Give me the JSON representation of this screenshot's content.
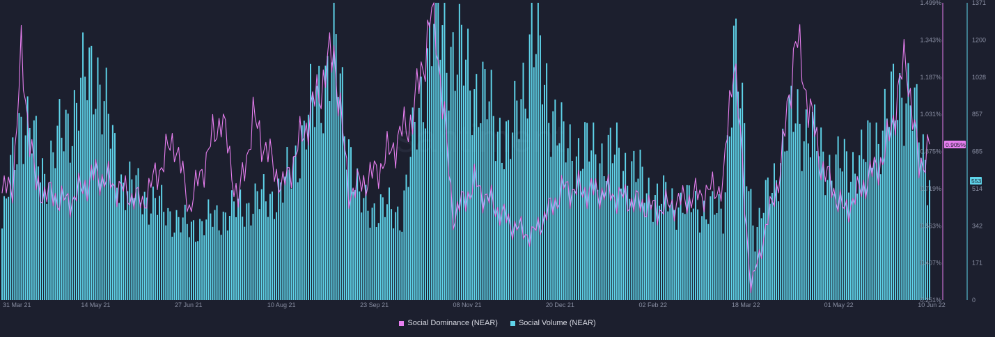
{
  "chart_data": {
    "type": "bar",
    "watermark": "santiment",
    "series": [
      {
        "name": "Social Dominance (NEAR)",
        "kind": "line",
        "axis": "right-inner",
        "unit": "%",
        "color": "#e87ff0",
        "anchors": [
          {
            "x": "2021-03-31",
            "y": 0.7
          },
          {
            "x": "2021-04-05",
            "y": 0.74
          },
          {
            "x": "2021-04-09",
            "y": 1.26
          },
          {
            "x": "2021-04-16",
            "y": 0.72
          },
          {
            "x": "2021-05-01",
            "y": 0.66
          },
          {
            "x": "2021-05-14",
            "y": 0.78
          },
          {
            "x": "2021-06-05",
            "y": 0.66
          },
          {
            "x": "2021-06-20",
            "y": 0.93
          },
          {
            "x": "2021-06-27",
            "y": 0.64
          },
          {
            "x": "2021-07-12",
            "y": 1.03
          },
          {
            "x": "2021-07-20",
            "y": 0.66
          },
          {
            "x": "2021-07-27",
            "y": 1.01
          },
          {
            "x": "2021-08-10",
            "y": 0.72
          },
          {
            "x": "2021-09-03",
            "y": 1.3
          },
          {
            "x": "2021-09-10",
            "y": 0.7
          },
          {
            "x": "2021-09-23",
            "y": 0.79
          },
          {
            "x": "2021-10-10",
            "y": 1.02
          },
          {
            "x": "2021-10-20",
            "y": 1.49
          },
          {
            "x": "2021-10-29",
            "y": 0.6
          },
          {
            "x": "2021-11-08",
            "y": 0.74
          },
          {
            "x": "2021-11-25",
            "y": 0.57
          },
          {
            "x": "2021-12-05",
            "y": 0.52
          },
          {
            "x": "2021-12-20",
            "y": 0.72
          },
          {
            "x": "2022-01-10",
            "y": 0.7
          },
          {
            "x": "2022-02-02",
            "y": 0.63
          },
          {
            "x": "2022-03-05",
            "y": 0.73
          },
          {
            "x": "2022-03-10",
            "y": 1.3
          },
          {
            "x": "2022-03-18",
            "y": 0.3
          },
          {
            "x": "2022-04-01",
            "y": 0.8
          },
          {
            "x": "2022-04-08",
            "y": 1.35
          },
          {
            "x": "2022-04-20",
            "y": 0.82
          },
          {
            "x": "2022-05-01",
            "y": 0.62
          },
          {
            "x": "2022-05-20",
            "y": 0.86
          },
          {
            "x": "2022-05-30",
            "y": 1.27
          },
          {
            "x": "2022-06-05",
            "y": 0.8
          },
          {
            "x": "2022-06-10",
            "y": 0.905
          }
        ]
      },
      {
        "name": "Social Volume (NEAR)",
        "kind": "bar",
        "axis": "right-outer",
        "color": "#5fd4ea",
        "anchors": [
          {
            "x": "2021-03-31",
            "y": 330
          },
          {
            "x": "2021-04-09",
            "y": 870
          },
          {
            "x": "2021-04-20",
            "y": 580
          },
          {
            "x": "2021-05-14",
            "y": 1100
          },
          {
            "x": "2021-05-25",
            "y": 560
          },
          {
            "x": "2021-06-27",
            "y": 330
          },
          {
            "x": "2021-07-20",
            "y": 420
          },
          {
            "x": "2021-08-10",
            "y": 500
          },
          {
            "x": "2021-09-03",
            "y": 1150
          },
          {
            "x": "2021-09-15",
            "y": 440
          },
          {
            "x": "2021-10-05",
            "y": 400
          },
          {
            "x": "2021-10-20",
            "y": 1290
          },
          {
            "x": "2021-11-08",
            "y": 1000
          },
          {
            "x": "2021-11-25",
            "y": 700
          },
          {
            "x": "2021-12-05",
            "y": 1210
          },
          {
            "x": "2021-12-20",
            "y": 700
          },
          {
            "x": "2022-01-15",
            "y": 660
          },
          {
            "x": "2022-02-02",
            "y": 470
          },
          {
            "x": "2022-03-05",
            "y": 400
          },
          {
            "x": "2022-03-10",
            "y": 1160
          },
          {
            "x": "2022-03-20",
            "y": 300
          },
          {
            "x": "2022-04-08",
            "y": 870
          },
          {
            "x": "2022-04-25",
            "y": 600
          },
          {
            "x": "2022-05-10",
            "y": 650
          },
          {
            "x": "2022-05-30",
            "y": 1000
          },
          {
            "x": "2022-06-10",
            "y": 553
          }
        ]
      }
    ],
    "x_axis": {
      "range": [
        "2021-03-31",
        "2022-06-10"
      ],
      "tick_labels": [
        "31 Mar 21",
        "14 May 21",
        "27 Jun 21",
        "10 Aug 21",
        "23 Sep 21",
        "08 Nov 21",
        "20 Dec 21",
        "02 Feb 22",
        "18 Mar 22",
        "01 May 22",
        "10 Jun 22"
      ]
    },
    "y_axis_dominance": {
      "range": [
        0.251,
        1.499
      ],
      "tick_labels": [
        "1.499%",
        "1.343%",
        "1.187%",
        "1.031%",
        "0.875%",
        "0.719%",
        "0.563%",
        "0.407%",
        "0.251%"
      ],
      "current_label": "0.905%"
    },
    "y_axis_volume": {
      "range": [
        0,
        1371
      ],
      "tick_labels": [
        "1371",
        "1200",
        "1028",
        "857",
        "685",
        "514",
        "342",
        "171",
        "0"
      ],
      "current_label": "553"
    },
    "legend": {
      "placement": "bottom-center",
      "items": [
        "Social Dominance (NEAR)",
        "Social Volume (NEAR)"
      ]
    },
    "grid": false
  }
}
